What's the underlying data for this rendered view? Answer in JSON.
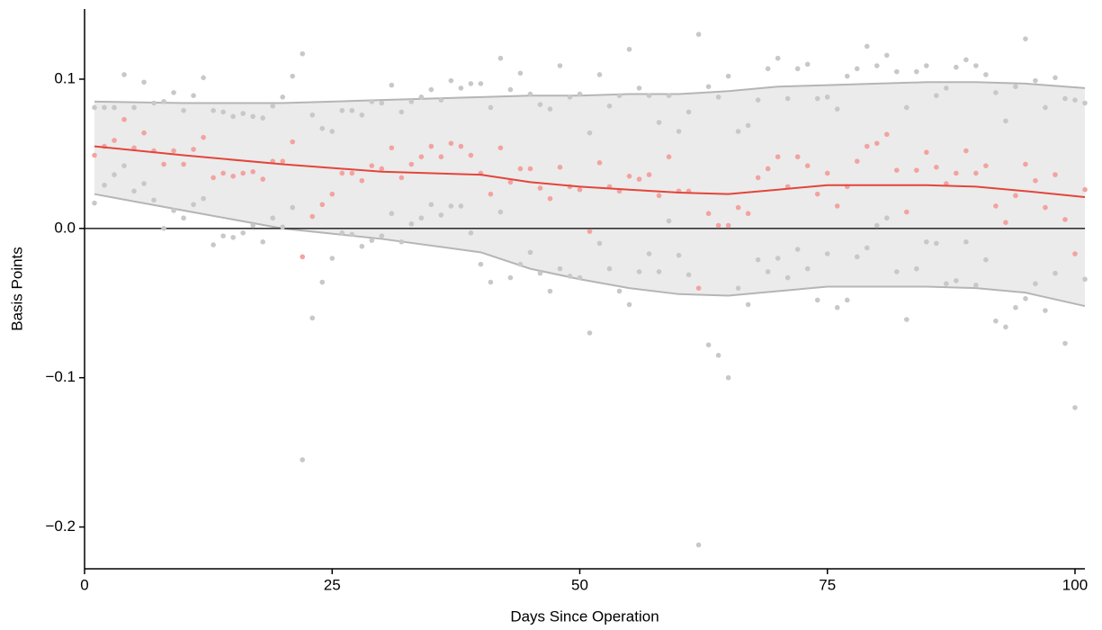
{
  "chart_data": {
    "type": "scatter",
    "x_label": "Days Since Operation",
    "y_label": "Basis Points",
    "xlim": [
      0,
      101
    ],
    "ylim": [
      -0.228,
      0.147
    ],
    "xticks": [
      0,
      25,
      50,
      75,
      100
    ],
    "yticks": [
      {
        "value": -0.2,
        "label": "−0.2"
      },
      {
        "value": -0.1,
        "label": "−0.1"
      },
      {
        "value": 0,
        "label": "0.0"
      },
      {
        "value": 0.1,
        "label": "0.1"
      }
    ],
    "reference_line": 0,
    "band": {
      "fill": "#ebebeb",
      "color": "#b5b5b5",
      "x": [
        1,
        10,
        20,
        30,
        40,
        45,
        50,
        55,
        60,
        65,
        70,
        75,
        80,
        85,
        90,
        95,
        101
      ],
      "upper": [
        0.085,
        0.084,
        0.084,
        0.086,
        0.088,
        0.089,
        0.089,
        0.09,
        0.09,
        0.092,
        0.095,
        0.096,
        0.097,
        0.098,
        0.098,
        0.097,
        0.094
      ],
      "lower": [
        0.023,
        0.012,
        0.0,
        -0.007,
        -0.016,
        -0.027,
        -0.034,
        -0.04,
        -0.044,
        -0.045,
        -0.042,
        -0.039,
        -0.039,
        -0.039,
        -0.04,
        -0.043,
        -0.052
      ]
    },
    "trend": {
      "color": "#e3453b",
      "x": [
        1,
        10,
        20,
        30,
        40,
        45,
        50,
        55,
        60,
        65,
        70,
        75,
        80,
        85,
        90,
        95,
        101
      ],
      "values": [
        0.055,
        0.049,
        0.043,
        0.038,
        0.036,
        0.031,
        0.028,
        0.026,
        0.024,
        0.023,
        0.026,
        0.029,
        0.029,
        0.029,
        0.028,
        0.025,
        0.021
      ]
    },
    "series": [
      {
        "color": "#c8c8c8",
        "x": [
          1,
          1,
          2,
          2,
          3,
          3,
          4,
          4,
          5,
          5,
          6,
          6,
          7,
          7,
          8,
          8,
          9,
          9,
          10,
          10,
          11,
          11,
          12,
          12,
          13,
          13,
          14,
          14,
          15,
          15,
          16,
          16,
          17,
          17,
          18,
          18,
          19,
          19,
          20,
          20,
          21,
          21,
          22,
          22,
          23,
          23,
          24,
          24,
          25,
          25,
          26,
          26,
          27,
          27,
          28,
          28,
          29,
          29,
          30,
          30,
          31,
          31,
          32,
          32,
          33,
          33,
          34,
          34,
          35,
          35,
          36,
          36,
          37,
          37,
          38,
          38,
          39,
          39,
          40,
          40,
          41,
          41,
          42,
          42,
          43,
          43,
          44,
          44,
          45,
          45,
          46,
          46,
          47,
          47,
          48,
          48,
          49,
          49,
          50,
          50,
          51,
          51,
          52,
          52,
          53,
          53,
          54,
          54,
          55,
          55,
          56,
          56,
          57,
          57,
          58,
          58,
          59,
          59,
          60,
          60,
          61,
          61,
          62,
          62,
          63,
          63,
          64,
          64,
          65,
          65,
          66,
          66,
          67,
          67,
          68,
          68,
          69,
          69,
          70,
          70,
          71,
          71,
          72,
          72,
          73,
          73,
          74,
          74,
          75,
          75,
          76,
          76,
          77,
          77,
          78,
          78,
          79,
          79,
          80,
          80,
          81,
          81,
          82,
          82,
          83,
          83,
          84,
          84,
          85,
          85,
          86,
          86,
          87,
          87,
          88,
          88,
          89,
          89,
          90,
          90,
          91,
          91,
          92,
          92,
          93,
          93,
          94,
          94,
          95,
          95,
          96,
          96,
          97,
          97,
          98,
          98,
          99,
          99,
          100,
          100,
          101,
          101
        ],
        "values": [
          0.081,
          0.017,
          0.081,
          0.029,
          0.081,
          0.036,
          0.103,
          0.042,
          0.081,
          0.025,
          0.098,
          0.03,
          0.084,
          0.019,
          0.085,
          0.0,
          0.091,
          0.012,
          0.079,
          0.007,
          0.089,
          0.016,
          0.101,
          0.02,
          0.079,
          -0.011,
          0.078,
          -0.005,
          0.075,
          -0.006,
          0.077,
          -0.003,
          0.075,
          0.002,
          0.074,
          -0.009,
          0.082,
          0.007,
          0.088,
          0.001,
          0.102,
          0.014,
          0.117,
          -0.155,
          0.076,
          -0.06,
          0.067,
          -0.036,
          0.065,
          -0.02,
          0.079,
          -0.003,
          0.079,
          -0.004,
          0.076,
          -0.012,
          0.085,
          -0.008,
          0.084,
          -0.005,
          0.096,
          0.01,
          0.078,
          -0.009,
          0.085,
          0.003,
          0.088,
          0.007,
          0.093,
          0.016,
          0.086,
          0.009,
          0.099,
          0.015,
          0.094,
          0.015,
          0.097,
          -0.003,
          0.097,
          -0.024,
          0.081,
          -0.036,
          0.114,
          0.011,
          0.093,
          -0.033,
          0.104,
          -0.024,
          0.09,
          -0.016,
          0.083,
          -0.03,
          0.08,
          -0.042,
          0.109,
          -0.027,
          0.088,
          -0.032,
          0.09,
          -0.033,
          0.064,
          -0.07,
          0.103,
          -0.01,
          0.082,
          -0.027,
          0.089,
          -0.042,
          0.12,
          -0.051,
          0.094,
          -0.029,
          0.089,
          -0.017,
          0.071,
          -0.029,
          0.089,
          0.005,
          0.065,
          -0.018,
          0.078,
          -0.031,
          0.13,
          -0.212,
          0.095,
          -0.078,
          0.088,
          -0.085,
          0.102,
          -0.1,
          0.065,
          -0.04,
          0.069,
          -0.051,
          0.086,
          -0.021,
          0.107,
          -0.029,
          0.114,
          -0.02,
          0.087,
          -0.033,
          0.107,
          -0.014,
          0.11,
          -0.027,
          0.087,
          -0.048,
          0.088,
          -0.017,
          0.08,
          -0.053,
          0.102,
          -0.048,
          0.107,
          -0.019,
          0.122,
          -0.013,
          0.109,
          0.002,
          0.116,
          0.007,
          0.105,
          -0.029,
          0.081,
          -0.061,
          0.105,
          -0.027,
          0.109,
          -0.009,
          0.089,
          -0.01,
          0.094,
          -0.037,
          0.108,
          -0.035,
          0.113,
          -0.009,
          0.109,
          -0.038,
          0.103,
          -0.021,
          0.091,
          -0.062,
          0.072,
          -0.066,
          0.095,
          -0.053,
          0.127,
          -0.047,
          0.099,
          -0.037,
          0.081,
          -0.055,
          0.101,
          -0.03,
          0.087,
          -0.077,
          0.086,
          -0.12,
          0.084,
          -0.034
        ]
      },
      {
        "color": "#f2a3a0",
        "x": [
          1,
          2,
          3,
          4,
          5,
          6,
          7,
          8,
          9,
          10,
          11,
          12,
          13,
          14,
          15,
          16,
          17,
          18,
          19,
          20,
          21,
          22,
          23,
          24,
          25,
          26,
          27,
          28,
          29,
          30,
          31,
          32,
          33,
          34,
          35,
          36,
          37,
          38,
          39,
          40,
          41,
          42,
          43,
          44,
          45,
          46,
          47,
          48,
          49,
          50,
          51,
          52,
          53,
          54,
          55,
          56,
          57,
          58,
          59,
          60,
          61,
          62,
          63,
          64,
          65,
          66,
          67,
          68,
          69,
          70,
          71,
          72,
          73,
          74,
          75,
          76,
          77,
          78,
          79,
          80,
          81,
          82,
          83,
          84,
          85,
          86,
          87,
          88,
          89,
          90,
          91,
          92,
          93,
          94,
          95,
          96,
          97,
          98,
          99,
          100,
          101
        ],
        "values": [
          0.049,
          0.055,
          0.059,
          0.073,
          0.054,
          0.064,
          0.052,
          0.043,
          0.052,
          0.043,
          0.053,
          0.061,
          0.034,
          0.037,
          0.035,
          0.037,
          0.038,
          0.033,
          0.045,
          0.045,
          0.058,
          -0.019,
          0.008,
          0.016,
          0.023,
          0.037,
          0.037,
          0.032,
          0.042,
          0.04,
          0.054,
          0.034,
          0.043,
          0.048,
          0.055,
          0.048,
          0.057,
          0.055,
          0.049,
          0.037,
          0.023,
          0.054,
          0.031,
          0.04,
          0.04,
          0.027,
          0.02,
          0.041,
          0.028,
          0.026,
          -0.002,
          0.044,
          0.028,
          0.025,
          0.035,
          0.033,
          0.036,
          0.022,
          0.048,
          0.025,
          0.025,
          -0.04,
          0.01,
          0.002,
          0.002,
          0.014,
          0.01,
          0.034,
          0.04,
          0.048,
          0.028,
          0.048,
          0.042,
          0.023,
          0.037,
          0.015,
          0.028,
          0.045,
          0.055,
          0.057,
          0.063,
          0.039,
          0.011,
          0.039,
          0.051,
          0.041,
          0.03,
          0.037,
          0.052,
          0.037,
          0.042,
          0.015,
          0.004,
          0.022,
          0.043,
          0.032,
          0.014,
          0.036,
          0.006,
          -0.017,
          0.026
        ]
      }
    ]
  }
}
